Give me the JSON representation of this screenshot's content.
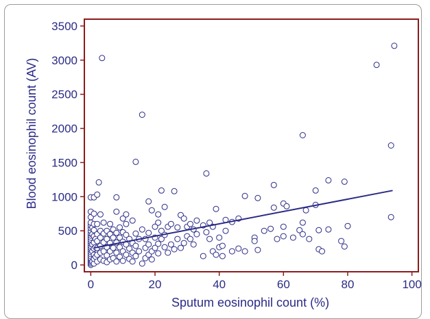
{
  "chart_data": {
    "type": "scatter",
    "title": "",
    "xlabel": "Sputum eosinophil count (%)",
    "ylabel": "Blood eosinophil count (AV)",
    "xlim": [
      -2,
      102
    ],
    "ylim": [
      -100,
      3600
    ],
    "xticks": [
      0,
      20,
      40,
      60,
      80,
      100
    ],
    "yticks": [
      0,
      500,
      1000,
      1500,
      2000,
      2500,
      3000,
      3500
    ],
    "grid": false,
    "legend": "none",
    "colors": {
      "axis": "#8b1a1a",
      "marker": "#2a2a86",
      "line": "#2a2a86",
      "text": "#2a2a86"
    },
    "points": [
      [
        0,
        0
      ],
      [
        0,
        20
      ],
      [
        0,
        40
      ],
      [
        0,
        60
      ],
      [
        0,
        80
      ],
      [
        0,
        100
      ],
      [
        0,
        130
      ],
      [
        0,
        160
      ],
      [
        0,
        190
      ],
      [
        0,
        220
      ],
      [
        0,
        250
      ],
      [
        0,
        280
      ],
      [
        0,
        310
      ],
      [
        0,
        340
      ],
      [
        0,
        370
      ],
      [
        0,
        400
      ],
      [
        0,
        430
      ],
      [
        0,
        460
      ],
      [
        0,
        500
      ],
      [
        0,
        540
      ],
      [
        0,
        580
      ],
      [
        0,
        620
      ],
      [
        0,
        700
      ],
      [
        0,
        780
      ],
      [
        0,
        990
      ],
      [
        0.5,
        50
      ],
      [
        0.5,
        200
      ],
      [
        0.5,
        300
      ],
      [
        0.5,
        450
      ],
      [
        0.5,
        550
      ],
      [
        1,
        20
      ],
      [
        1,
        90
      ],
      [
        1,
        150
      ],
      [
        1,
        240
      ],
      [
        1,
        330
      ],
      [
        1,
        420
      ],
      [
        1,
        510
      ],
      [
        1,
        600
      ],
      [
        1,
        750
      ],
      [
        1,
        990
      ],
      [
        1.5,
        120
      ],
      [
        1.5,
        260
      ],
      [
        1.5,
        380
      ],
      [
        2,
        50
      ],
      [
        2,
        150
      ],
      [
        2,
        250
      ],
      [
        2,
        350
      ],
      [
        2,
        450
      ],
      [
        2,
        600
      ],
      [
        2,
        1030
      ],
      [
        2.5,
        1210
      ],
      [
        3,
        80
      ],
      [
        3,
        180
      ],
      [
        3,
        280
      ],
      [
        3,
        400
      ],
      [
        3,
        500
      ],
      [
        3,
        740
      ],
      [
        3.5,
        3030
      ],
      [
        4,
        60
      ],
      [
        4,
        200
      ],
      [
        4,
        330
      ],
      [
        4,
        460
      ],
      [
        4,
        620
      ],
      [
        5,
        40
      ],
      [
        5,
        140
      ],
      [
        5,
        260
      ],
      [
        5,
        380
      ],
      [
        5,
        500
      ],
      [
        6,
        80
      ],
      [
        6,
        200
      ],
      [
        6,
        320
      ],
      [
        6,
        450
      ],
      [
        6,
        600
      ],
      [
        7,
        100
      ],
      [
        7,
        250
      ],
      [
        7,
        400
      ],
      [
        7,
        520
      ],
      [
        8,
        50
      ],
      [
        8,
        180
      ],
      [
        8,
        330
      ],
      [
        8,
        470
      ],
      [
        8,
        780
      ],
      [
        8,
        990
      ],
      [
        9,
        120
      ],
      [
        9,
        260
      ],
      [
        9,
        400
      ],
      [
        9,
        550
      ],
      [
        10,
        60
      ],
      [
        10,
        200
      ],
      [
        10,
        340
      ],
      [
        10,
        480
      ],
      [
        10,
        680
      ],
      [
        11,
        150
      ],
      [
        11,
        300
      ],
      [
        11,
        440
      ],
      [
        11,
        600
      ],
      [
        11,
        740
      ],
      [
        12,
        90
      ],
      [
        12,
        240
      ],
      [
        12,
        380
      ],
      [
        13,
        50
      ],
      [
        13,
        180
      ],
      [
        13,
        320
      ],
      [
        13,
        650
      ],
      [
        14,
        130
      ],
      [
        14,
        280
      ],
      [
        14,
        460
      ],
      [
        14,
        1510
      ],
      [
        15,
        200
      ],
      [
        15,
        380
      ],
      [
        16,
        20
      ],
      [
        16,
        2200
      ],
      [
        16,
        520
      ],
      [
        17,
        100
      ],
      [
        17,
        250
      ],
      [
        17,
        380
      ],
      [
        18,
        150
      ],
      [
        18,
        300
      ],
      [
        18,
        470
      ],
      [
        18,
        930
      ],
      [
        19,
        80
      ],
      [
        19,
        200
      ],
      [
        19,
        800
      ],
      [
        20,
        250
      ],
      [
        20,
        400
      ],
      [
        20,
        560
      ],
      [
        21,
        170
      ],
      [
        21,
        310
      ],
      [
        21,
        740
      ],
      [
        21,
        620
      ],
      [
        22,
        380
      ],
      [
        22,
        500
      ],
      [
        22,
        1090
      ],
      [
        23,
        260
      ],
      [
        23,
        440
      ],
      [
        23,
        850
      ],
      [
        24,
        180
      ],
      [
        24,
        560
      ],
      [
        25,
        300
      ],
      [
        25,
        600
      ],
      [
        26,
        1080
      ],
      [
        26,
        230
      ],
      [
        27,
        380
      ],
      [
        27,
        550
      ],
      [
        28,
        250
      ],
      [
        28,
        730
      ],
      [
        29,
        320
      ],
      [
        29,
        680
      ],
      [
        30,
        420
      ],
      [
        30,
        560
      ],
      [
        31,
        380
      ],
      [
        31,
        600
      ],
      [
        32,
        300
      ],
      [
        32,
        520
      ],
      [
        33,
        450
      ],
      [
        33,
        650
      ],
      [
        35,
        130
      ],
      [
        35,
        580
      ],
      [
        36,
        1340
      ],
      [
        36,
        480
      ],
      [
        37,
        380
      ],
      [
        37,
        620
      ],
      [
        38,
        200
      ],
      [
        38,
        560
      ],
      [
        39,
        820
      ],
      [
        39,
        150
      ],
      [
        40,
        260
      ],
      [
        40,
        400
      ],
      [
        41,
        130
      ],
      [
        41,
        280
      ],
      [
        42,
        660
      ],
      [
        42,
        500
      ],
      [
        44,
        200
      ],
      [
        44,
        630
      ],
      [
        46,
        240
      ],
      [
        46,
        680
      ],
      [
        48,
        200
      ],
      [
        48,
        1010
      ],
      [
        51,
        400
      ],
      [
        51,
        350
      ],
      [
        52,
        980
      ],
      [
        52,
        220
      ],
      [
        54,
        500
      ],
      [
        56,
        530
      ],
      [
        57,
        1170
      ],
      [
        57,
        840
      ],
      [
        58,
        380
      ],
      [
        60,
        560
      ],
      [
        60,
        420
      ],
      [
        60,
        900
      ],
      [
        61,
        860
      ],
      [
        63,
        400
      ],
      [
        65,
        510
      ],
      [
        66,
        450
      ],
      [
        66,
        1900
      ],
      [
        66,
        620
      ],
      [
        67,
        800
      ],
      [
        68,
        380
      ],
      [
        70,
        1090
      ],
      [
        70,
        880
      ],
      [
        71,
        510
      ],
      [
        71,
        230
      ],
      [
        72,
        200
      ],
      [
        74,
        1240
      ],
      [
        74,
        520
      ],
      [
        78,
        350
      ],
      [
        79,
        1220
      ],
      [
        79,
        270
      ],
      [
        80,
        570
      ],
      [
        89,
        2930
      ],
      [
        93.5,
        700
      ],
      [
        93.5,
        1750
      ],
      [
        94.5,
        3210
      ]
    ],
    "regression": [
      [
        1,
        250
      ],
      [
        94,
        1090
      ]
    ]
  }
}
